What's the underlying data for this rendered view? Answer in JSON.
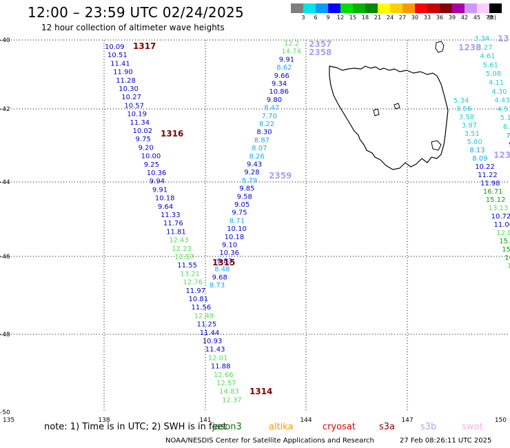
{
  "header": {
    "title": "12:00 – 23:59 UTC 02/24/2025",
    "subtitle": "12 hour collection of altimeter wave heights"
  },
  "scale": {
    "swatches": [
      {
        "label": "3",
        "color": "#7f7f7f"
      },
      {
        "label": "6",
        "color": "#00e6e6"
      },
      {
        "label": "9",
        "color": "#00a0ff"
      },
      {
        "label": "12",
        "color": "#0000ff"
      },
      {
        "label": "15",
        "color": "#00dd00"
      },
      {
        "label": "18",
        "color": "#00b300"
      },
      {
        "label": "21",
        "color": "#008800"
      },
      {
        "label": "24",
        "color": "#ffff00"
      },
      {
        "label": "27",
        "color": "#ffd000"
      },
      {
        "label": "30",
        "color": "#ff9900"
      },
      {
        "label": "33",
        "color": "#ff0000"
      },
      {
        "label": "36",
        "color": "#cc0000"
      },
      {
        "label": "39",
        "color": "#880000"
      },
      {
        "label": "42",
        "color": "#aa00aa"
      },
      {
        "label": "45",
        "color": "#cc99ff"
      },
      {
        "label": "70",
        "color": "#ffccff"
      },
      {
        "label": "",
        "color": "#000000"
      }
    ],
    "unit": "(ft)"
  },
  "axes": {
    "x_labels": [
      "135",
      "138",
      "141",
      "144",
      "147",
      "150"
    ],
    "y_labels": [
      "-40",
      "-42",
      "-44",
      "-46",
      "-48",
      "-50"
    ]
  },
  "passes": [
    {
      "id": "1317",
      "color": "#800000"
    },
    {
      "id": "1316",
      "color": "#800000"
    },
    {
      "id": "1315",
      "color": "#800000"
    },
    {
      "id": "1314",
      "color": "#800000"
    },
    {
      "id": "2357",
      "color": "#b0a0f0"
    },
    {
      "id": "2358",
      "color": "#b0a0f0"
    },
    {
      "id": "2359",
      "color": "#b0a0f0"
    },
    {
      "id": "1238",
      "color": "#b0a0f0"
    },
    {
      "id": "13",
      "color": "#b0a0f0"
    },
    {
      "id": "123",
      "color": "#b0a0f0"
    }
  ],
  "tracks": {
    "track_a": [
      {
        "v": "10.09",
        "c": "#0000cc"
      },
      {
        "v": "10.51",
        "c": "#0000cc"
      },
      {
        "v": "11.41",
        "c": "#0000cc"
      },
      {
        "v": "11.90",
        "c": "#0000cc"
      },
      {
        "v": "11.28",
        "c": "#0000cc"
      },
      {
        "v": "10.30",
        "c": "#0000cc"
      },
      {
        "v": "10.27",
        "c": "#0000cc"
      },
      {
        "v": "10.57",
        "c": "#0000cc"
      },
      {
        "v": "10.19",
        "c": "#0000cc"
      },
      {
        "v": "11.34",
        "c": "#0000cc"
      },
      {
        "v": "10.02",
        "c": "#0000cc"
      },
      {
        "v": "9.75",
        "c": "#0000cc"
      },
      {
        "v": "9.20",
        "c": "#0000cc"
      },
      {
        "v": "10.00",
        "c": "#0000cc"
      },
      {
        "v": "9.25",
        "c": "#0000cc"
      },
      {
        "v": "10.36",
        "c": "#0000cc"
      },
      {
        "v": "9.94",
        "c": "#0000cc"
      },
      {
        "v": "9.91",
        "c": "#0000cc"
      },
      {
        "v": "10.18",
        "c": "#0000cc"
      },
      {
        "v": "9.64",
        "c": "#0000cc"
      },
      {
        "v": "11.33",
        "c": "#0000cc"
      },
      {
        "v": "11.76",
        "c": "#0000cc"
      },
      {
        "v": "11.81",
        "c": "#0000cc"
      },
      {
        "v": "12.43",
        "c": "#55dd55"
      },
      {
        "v": "12.23",
        "c": "#55dd55"
      },
      {
        "v": "12.57",
        "c": "#55dd55"
      },
      {
        "v": "11.55",
        "c": "#0000cc"
      },
      {
        "v": "13.21",
        "c": "#55dd55"
      },
      {
        "v": "12.76",
        "c": "#55dd55"
      },
      {
        "v": "11.97",
        "c": "#0000cc"
      },
      {
        "v": "10.81",
        "c": "#0000cc"
      },
      {
        "v": "11.56",
        "c": "#0000cc"
      },
      {
        "v": "12.49",
        "c": "#55dd55"
      },
      {
        "v": "11.25",
        "c": "#0000cc"
      },
      {
        "v": "11.44",
        "c": "#0000cc"
      },
      {
        "v": "10.93",
        "c": "#0000cc"
      },
      {
        "v": "11.43",
        "c": "#0000cc"
      },
      {
        "v": "12.01",
        "c": "#55dd55"
      },
      {
        "v": "11.88",
        "c": "#0000cc"
      },
      {
        "v": "12.66",
        "c": "#55dd55"
      },
      {
        "v": "12.57",
        "c": "#55dd55"
      },
      {
        "v": "14.83",
        "c": "#55dd55"
      },
      {
        "v": "12.37",
        "c": "#55dd55"
      }
    ],
    "track_b": [
      {
        "v": "12.2",
        "c": "#55dd55"
      },
      {
        "v": "14.74",
        "c": "#55dd55"
      },
      {
        "v": "9.91",
        "c": "#0000cc"
      },
      {
        "v": "8.62",
        "c": "#11aaee"
      },
      {
        "v": "9.66",
        "c": "#0000cc"
      },
      {
        "v": "9.34",
        "c": "#0000cc"
      },
      {
        "v": "10.86",
        "c": "#0000cc"
      },
      {
        "v": "9.80",
        "c": "#0000cc"
      },
      {
        "v": "8.47",
        "c": "#11aaee"
      },
      {
        "v": "7.70",
        "c": "#11aaee"
      },
      {
        "v": "8.22",
        "c": "#11aaee"
      },
      {
        "v": "8.30",
        "c": "#0000cc"
      },
      {
        "v": "8.87",
        "c": "#11aaee"
      },
      {
        "v": "8.07",
        "c": "#11aaee"
      },
      {
        "v": "8.26",
        "c": "#11aaee"
      },
      {
        "v": "9.43",
        "c": "#0000cc"
      },
      {
        "v": "9.28",
        "c": "#0000cc"
      },
      {
        "v": "8.79",
        "c": "#11aaee"
      },
      {
        "v": "9.85",
        "c": "#0000cc"
      },
      {
        "v": "9.58",
        "c": "#0000cc"
      },
      {
        "v": "9.05",
        "c": "#0000cc"
      },
      {
        "v": "9.75",
        "c": "#0000cc"
      },
      {
        "v": "8.71",
        "c": "#11aaee"
      },
      {
        "v": "10.10",
        "c": "#0000cc"
      },
      {
        "v": "10.18",
        "c": "#0000cc"
      },
      {
        "v": "9.10",
        "c": "#0000cc"
      },
      {
        "v": "10.36",
        "c": "#0000cc"
      },
      {
        "v": "9.83",
        "c": "#0000cc"
      },
      {
        "v": "8.48",
        "c": "#11aaee"
      },
      {
        "v": "9.68",
        "c": "#0000cc"
      },
      {
        "v": "8.73",
        "c": "#11aaee"
      }
    ],
    "track_c": [
      {
        "v": "3.34",
        "c": "#22cccc"
      },
      {
        "v": "3.27",
        "c": "#22cccc"
      },
      {
        "v": "4.61",
        "c": "#22cccc"
      },
      {
        "v": "5.61",
        "c": "#22cccc"
      },
      {
        "v": "5.08",
        "c": "#22cccc"
      },
      {
        "v": "4.11",
        "c": "#22cccc"
      },
      {
        "v": "4.30",
        "c": "#22cccc"
      },
      {
        "v": "4.43",
        "c": "#22cccc"
      },
      {
        "v": "4.51",
        "c": "#22cccc"
      },
      {
        "v": "5.19",
        "c": "#22cccc"
      },
      {
        "v": "6.2",
        "c": "#22cccc"
      },
      {
        "v": "7.",
        "c": "#11aaee"
      },
      {
        "v": "9",
        "c": "#0000cc"
      }
    ],
    "track_d": [
      {
        "v": "5.34",
        "c": "#22cccc"
      },
      {
        "v": "3.56",
        "c": "#22cccc"
      },
      {
        "v": "3.58",
        "c": "#22cccc"
      },
      {
        "v": "3.97",
        "c": "#22cccc"
      },
      {
        "v": "3.51",
        "c": "#22cccc"
      },
      {
        "v": "5.80",
        "c": "#22cccc"
      },
      {
        "v": "8.13",
        "c": "#11aaee"
      },
      {
        "v": "8.09",
        "c": "#11aaee"
      },
      {
        "v": "10.22",
        "c": "#0000cc"
      },
      {
        "v": "11.22",
        "c": "#0000cc"
      },
      {
        "v": "11.98",
        "c": "#0000cc"
      },
      {
        "v": "16.71",
        "c": "#00aa00"
      },
      {
        "v": "15.12",
        "c": "#00aa00"
      },
      {
        "v": "13.13",
        "c": "#55dd55"
      },
      {
        "v": "10.72",
        "c": "#0000cc"
      },
      {
        "v": "11.00",
        "c": "#0000cc"
      },
      {
        "v": "12.0",
        "c": "#55dd55"
      },
      {
        "v": "15.1",
        "c": "#00aa00"
      },
      {
        "v": "15.",
        "c": "#00aa00"
      },
      {
        "v": "16",
        "c": "#00aa00"
      },
      {
        "v": "1",
        "c": "#55dd55"
      }
    ]
  },
  "footer": {
    "note": "note:  1) Time is in UTC; 2) SWH is in feet",
    "satellites": [
      {
        "name": "jason3",
        "color": "#007700"
      },
      {
        "name": "altika",
        "color": "#ff9900"
      },
      {
        "name": "cryosat",
        "color": "#dd0000"
      },
      {
        "name": "s3a",
        "color": "#880000"
      },
      {
        "name": "s3b",
        "color": "#b0a0f0"
      },
      {
        "name": "swot",
        "color": "#ffaaee"
      }
    ],
    "credit": "NOAA/NESDIS Center for Satellite Applications and Research",
    "timestamp": "27 Feb 08:26:11 UTC 2025"
  }
}
